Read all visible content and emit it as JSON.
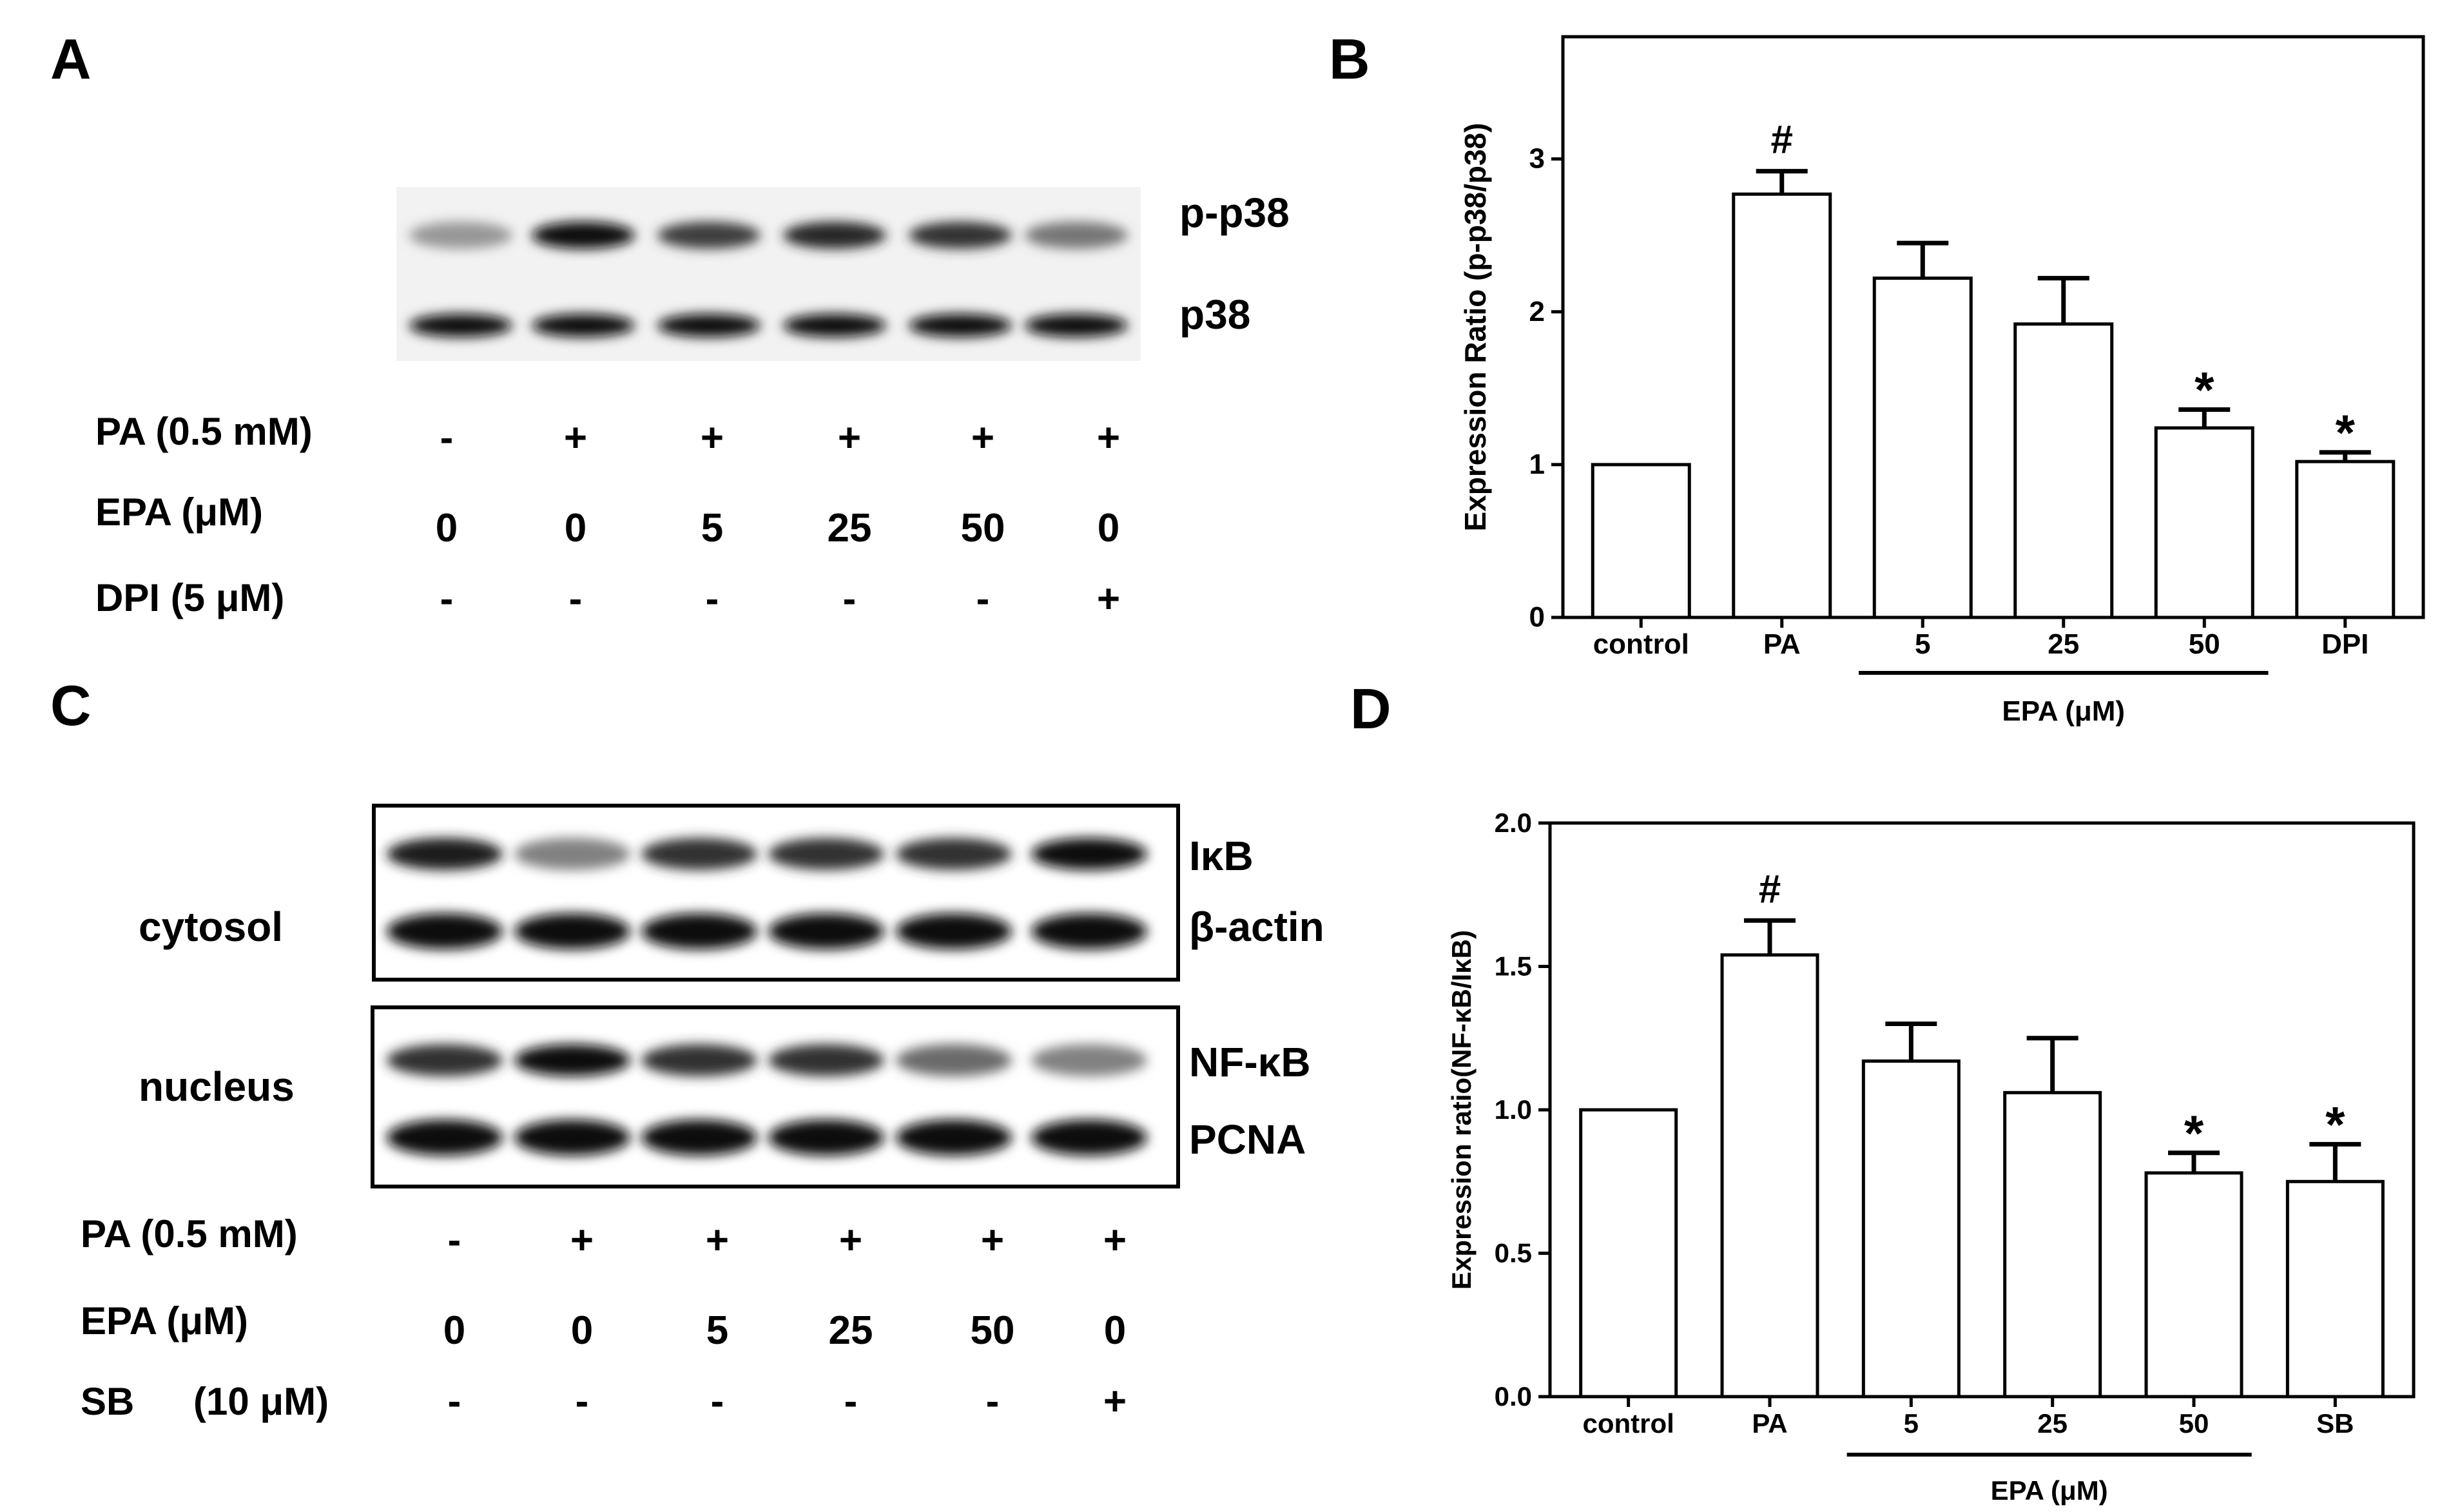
{
  "panels": {
    "A": {
      "letter": "A",
      "band_labels": [
        "p-p38",
        "p38"
      ],
      "band_intensity": {
        "p-p38": [
          0.35,
          0.95,
          0.75,
          0.85,
          0.8,
          0.5
        ],
        "p38": [
          0.95,
          0.95,
          0.95,
          0.95,
          0.95,
          0.95
        ]
      },
      "conditions": [
        {
          "label": "PA (0.5 mM)",
          "values": [
            "-",
            "+",
            "+",
            "+",
            "+",
            "+"
          ]
        },
        {
          "label": "EPA (μM)",
          "values": [
            "0",
            "0",
            "5",
            "25",
            "50",
            "0"
          ]
        },
        {
          "label": "DPI  (5 μM)",
          "values": [
            "-",
            "-",
            "-",
            "-",
            "-",
            "+"
          ]
        }
      ]
    },
    "C": {
      "letter": "C",
      "compartments": [
        {
          "label": "cytosol",
          "band_labels": [
            "IκB",
            "β-actin"
          ]
        },
        {
          "label": "nucleus",
          "band_labels": [
            "NF-κB",
            "PCNA"
          ]
        }
      ],
      "band_intensity": {
        "IκB": [
          0.9,
          0.45,
          0.8,
          0.8,
          0.8,
          0.95
        ],
        "β-actin": [
          0.98,
          0.98,
          0.98,
          0.98,
          0.98,
          0.98
        ],
        "NF-κB": [
          0.8,
          0.95,
          0.8,
          0.8,
          0.55,
          0.45
        ],
        "PCNA": [
          0.98,
          0.98,
          0.98,
          0.98,
          0.98,
          0.98
        ]
      },
      "conditions": [
        {
          "label": "PA (0.5 mM)",
          "values": [
            "-",
            "+",
            "+",
            "+",
            "+",
            "+"
          ]
        },
        {
          "label": "EPA (μM)",
          "values": [
            "0",
            "0",
            "5",
            "25",
            "50",
            "0"
          ]
        },
        {
          "label_a": "SB",
          "label_b": "(10 μM)",
          "values": [
            "-",
            "-",
            "-",
            "-",
            "-",
            "+"
          ]
        }
      ]
    }
  },
  "chart_data": [
    {
      "panel": "B",
      "type": "bar",
      "categories": [
        "control",
        "PA",
        "5",
        "25",
        "50",
        "DPI"
      ],
      "values": [
        1.0,
        2.77,
        2.22,
        1.92,
        1.24,
        1.02
      ],
      "errors": [
        0,
        0.15,
        0.23,
        0.3,
        0.12,
        0.06
      ],
      "annotations": [
        "",
        "#",
        "",
        "",
        "*",
        "*"
      ],
      "group_label": "EPA (μM)",
      "group_categories": [
        "5",
        "25",
        "50"
      ],
      "ylabel": "Expression Ratio  (p-p38/p38)",
      "ylim": [
        0,
        3.8
      ],
      "yticks": [
        0,
        1,
        2,
        3
      ],
      "tick_labels": [
        "0",
        "1",
        "2",
        "3"
      ],
      "grid": false
    },
    {
      "panel": "D",
      "type": "bar",
      "categories": [
        "control",
        "PA",
        "5",
        "25",
        "50",
        "SB"
      ],
      "values": [
        1.0,
        1.54,
        1.17,
        1.06,
        0.78,
        0.75
      ],
      "errors": [
        0,
        0.12,
        0.13,
        0.19,
        0.07,
        0.13
      ],
      "annotations": [
        "",
        "#",
        "",
        "",
        "*",
        "*"
      ],
      "group_label": "EPA (μM)",
      "group_categories": [
        "5",
        "25",
        "50"
      ],
      "ylabel": "Expression ratio(NF-κB/IκB)",
      "ylim": [
        0,
        2.0
      ],
      "yticks": [
        0,
        0.5,
        1.0,
        1.5,
        2.0
      ],
      "tick_labels": [
        "0.0",
        "0.5",
        "1.0",
        "1.5",
        "2.0"
      ],
      "grid": false
    }
  ],
  "panel_letters": {
    "B": "B",
    "D": "D"
  }
}
